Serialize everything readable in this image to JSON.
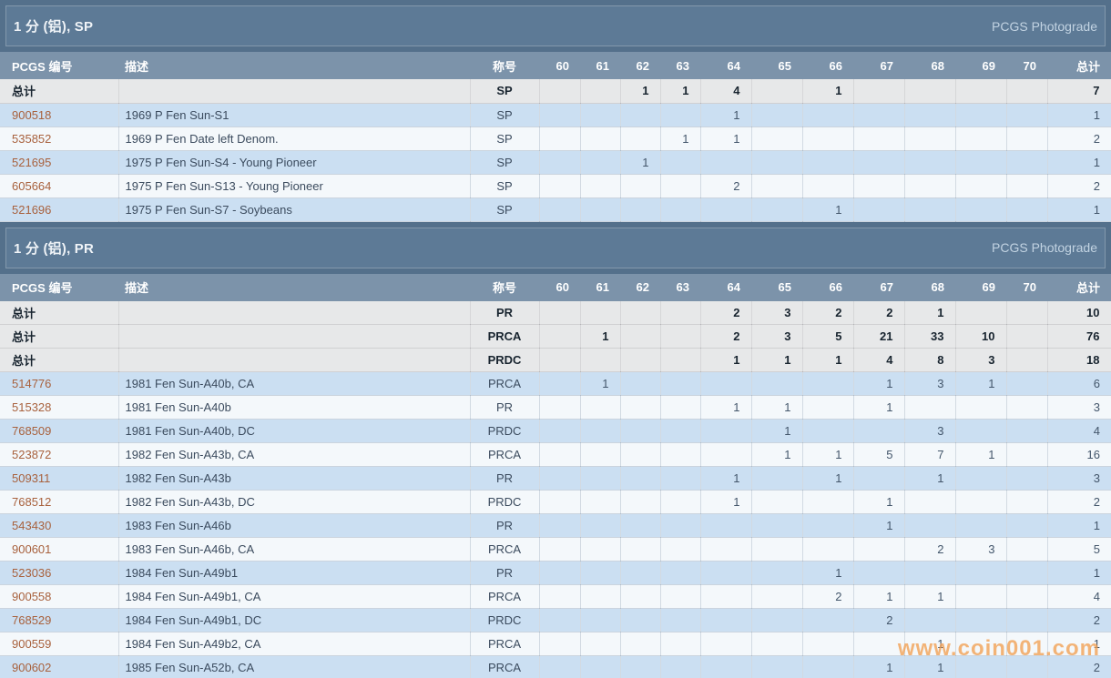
{
  "page": {
    "watermark": "www.coin001.com"
  },
  "colors": {
    "band_background": "#5d7a96",
    "column_header_background": "#7c93aa",
    "row_blue": "#cbdff2",
    "row_white": "#f4f8fb",
    "row_total": "#e7e8e9",
    "pcgs_number_link": "#a8613d",
    "watermark": "#f2a053"
  },
  "columns": {
    "pcgs": "PCGS 编号",
    "description": "描述",
    "designation": "称号",
    "grades": [
      "60",
      "61",
      "62",
      "63",
      "64",
      "65",
      "66",
      "67",
      "68",
      "69",
      "70"
    ],
    "total": "总计"
  },
  "tables": [
    {
      "title": "1 分 (铝), SP",
      "photograde_label": "PCGS Photograde",
      "total_rows": [
        {
          "label": "总计",
          "designation": "SP",
          "grades": {
            "62": "1",
            "63": "1",
            "64": "4",
            "66": "1"
          },
          "total": "7"
        }
      ],
      "rows": [
        {
          "pcgs": "900518",
          "description": "1969 P Fen Sun-S1",
          "designation": "SP",
          "grades": {
            "64": "1"
          },
          "total": "1"
        },
        {
          "pcgs": "535852",
          "description": "1969 P Fen Date left Denom.",
          "designation": "SP",
          "grades": {
            "63": "1",
            "64": "1"
          },
          "total": "2"
        },
        {
          "pcgs": "521695",
          "description": "1975 P Fen Sun-S4 - Young Pioneer",
          "designation": "SP",
          "grades": {
            "62": "1"
          },
          "total": "1"
        },
        {
          "pcgs": "605664",
          "description": "1975 P Fen Sun-S13 - Young Pioneer",
          "designation": "SP",
          "grades": {
            "64": "2"
          },
          "total": "2"
        },
        {
          "pcgs": "521696",
          "description": "1975 P Fen Sun-S7 - Soybeans",
          "designation": "SP",
          "grades": {
            "66": "1"
          },
          "total": "1"
        }
      ]
    },
    {
      "title": "1 分 (铝), PR",
      "photograde_label": "PCGS Photograde",
      "total_rows": [
        {
          "label": "总计",
          "designation": "PR",
          "grades": {
            "64": "2",
            "65": "3",
            "66": "2",
            "67": "2",
            "68": "1"
          },
          "total": "10"
        },
        {
          "label": "总计",
          "designation": "PRCA",
          "grades": {
            "61": "1",
            "64": "2",
            "65": "3",
            "66": "5",
            "67": "21",
            "68": "33",
            "69": "10"
          },
          "total": "76"
        },
        {
          "label": "总计",
          "designation": "PRDC",
          "grades": {
            "64": "1",
            "65": "1",
            "66": "1",
            "67": "4",
            "68": "8",
            "69": "3"
          },
          "total": "18"
        }
      ],
      "rows": [
        {
          "pcgs": "514776",
          "description": "1981 Fen Sun-A40b, CA",
          "designation": "PRCA",
          "grades": {
            "61": "1",
            "67": "1",
            "68": "3",
            "69": "1"
          },
          "total": "6"
        },
        {
          "pcgs": "515328",
          "description": "1981 Fen Sun-A40b",
          "designation": "PR",
          "grades": {
            "64": "1",
            "65": "1",
            "67": "1"
          },
          "total": "3"
        },
        {
          "pcgs": "768509",
          "description": "1981 Fen Sun-A40b, DC",
          "designation": "PRDC",
          "grades": {
            "65": "1",
            "68": "3"
          },
          "total": "4"
        },
        {
          "pcgs": "523872",
          "description": "1982 Fen Sun-A43b, CA",
          "designation": "PRCA",
          "grades": {
            "65": "1",
            "66": "1",
            "67": "5",
            "68": "7",
            "69": "1"
          },
          "total": "16"
        },
        {
          "pcgs": "509311",
          "description": "1982 Fen Sun-A43b",
          "designation": "PR",
          "grades": {
            "64": "1",
            "66": "1",
            "68": "1"
          },
          "total": "3"
        },
        {
          "pcgs": "768512",
          "description": "1982 Fen Sun-A43b, DC",
          "designation": "PRDC",
          "grades": {
            "64": "1",
            "67": "1"
          },
          "total": "2"
        },
        {
          "pcgs": "543430",
          "description": "1983 Fen Sun-A46b",
          "designation": "PR",
          "grades": {
            "67": "1"
          },
          "total": "1"
        },
        {
          "pcgs": "900601",
          "description": "1983 Fen Sun-A46b, CA",
          "designation": "PRCA",
          "grades": {
            "68": "2",
            "69": "3"
          },
          "total": "5"
        },
        {
          "pcgs": "523036",
          "description": "1984 Fen Sun-A49b1",
          "designation": "PR",
          "grades": {
            "66": "1"
          },
          "total": "1"
        },
        {
          "pcgs": "900558",
          "description": "1984 Fen Sun-A49b1, CA",
          "designation": "PRCA",
          "grades": {
            "66": "2",
            "67": "1",
            "68": "1"
          },
          "total": "4"
        },
        {
          "pcgs": "768529",
          "description": "1984 Fen Sun-A49b1, DC",
          "designation": "PRDC",
          "grades": {
            "67": "2"
          },
          "total": "2"
        },
        {
          "pcgs": "900559",
          "description": "1984 Fen Sun-A49b2, CA",
          "designation": "PRCA",
          "grades": {
            "68": "1"
          },
          "total": "1"
        },
        {
          "pcgs": "900602",
          "description": "1985 Fen Sun-A52b, CA",
          "designation": "PRCA",
          "grades": {
            "67": "1",
            "68": "1"
          },
          "total": "2"
        }
      ]
    }
  ]
}
